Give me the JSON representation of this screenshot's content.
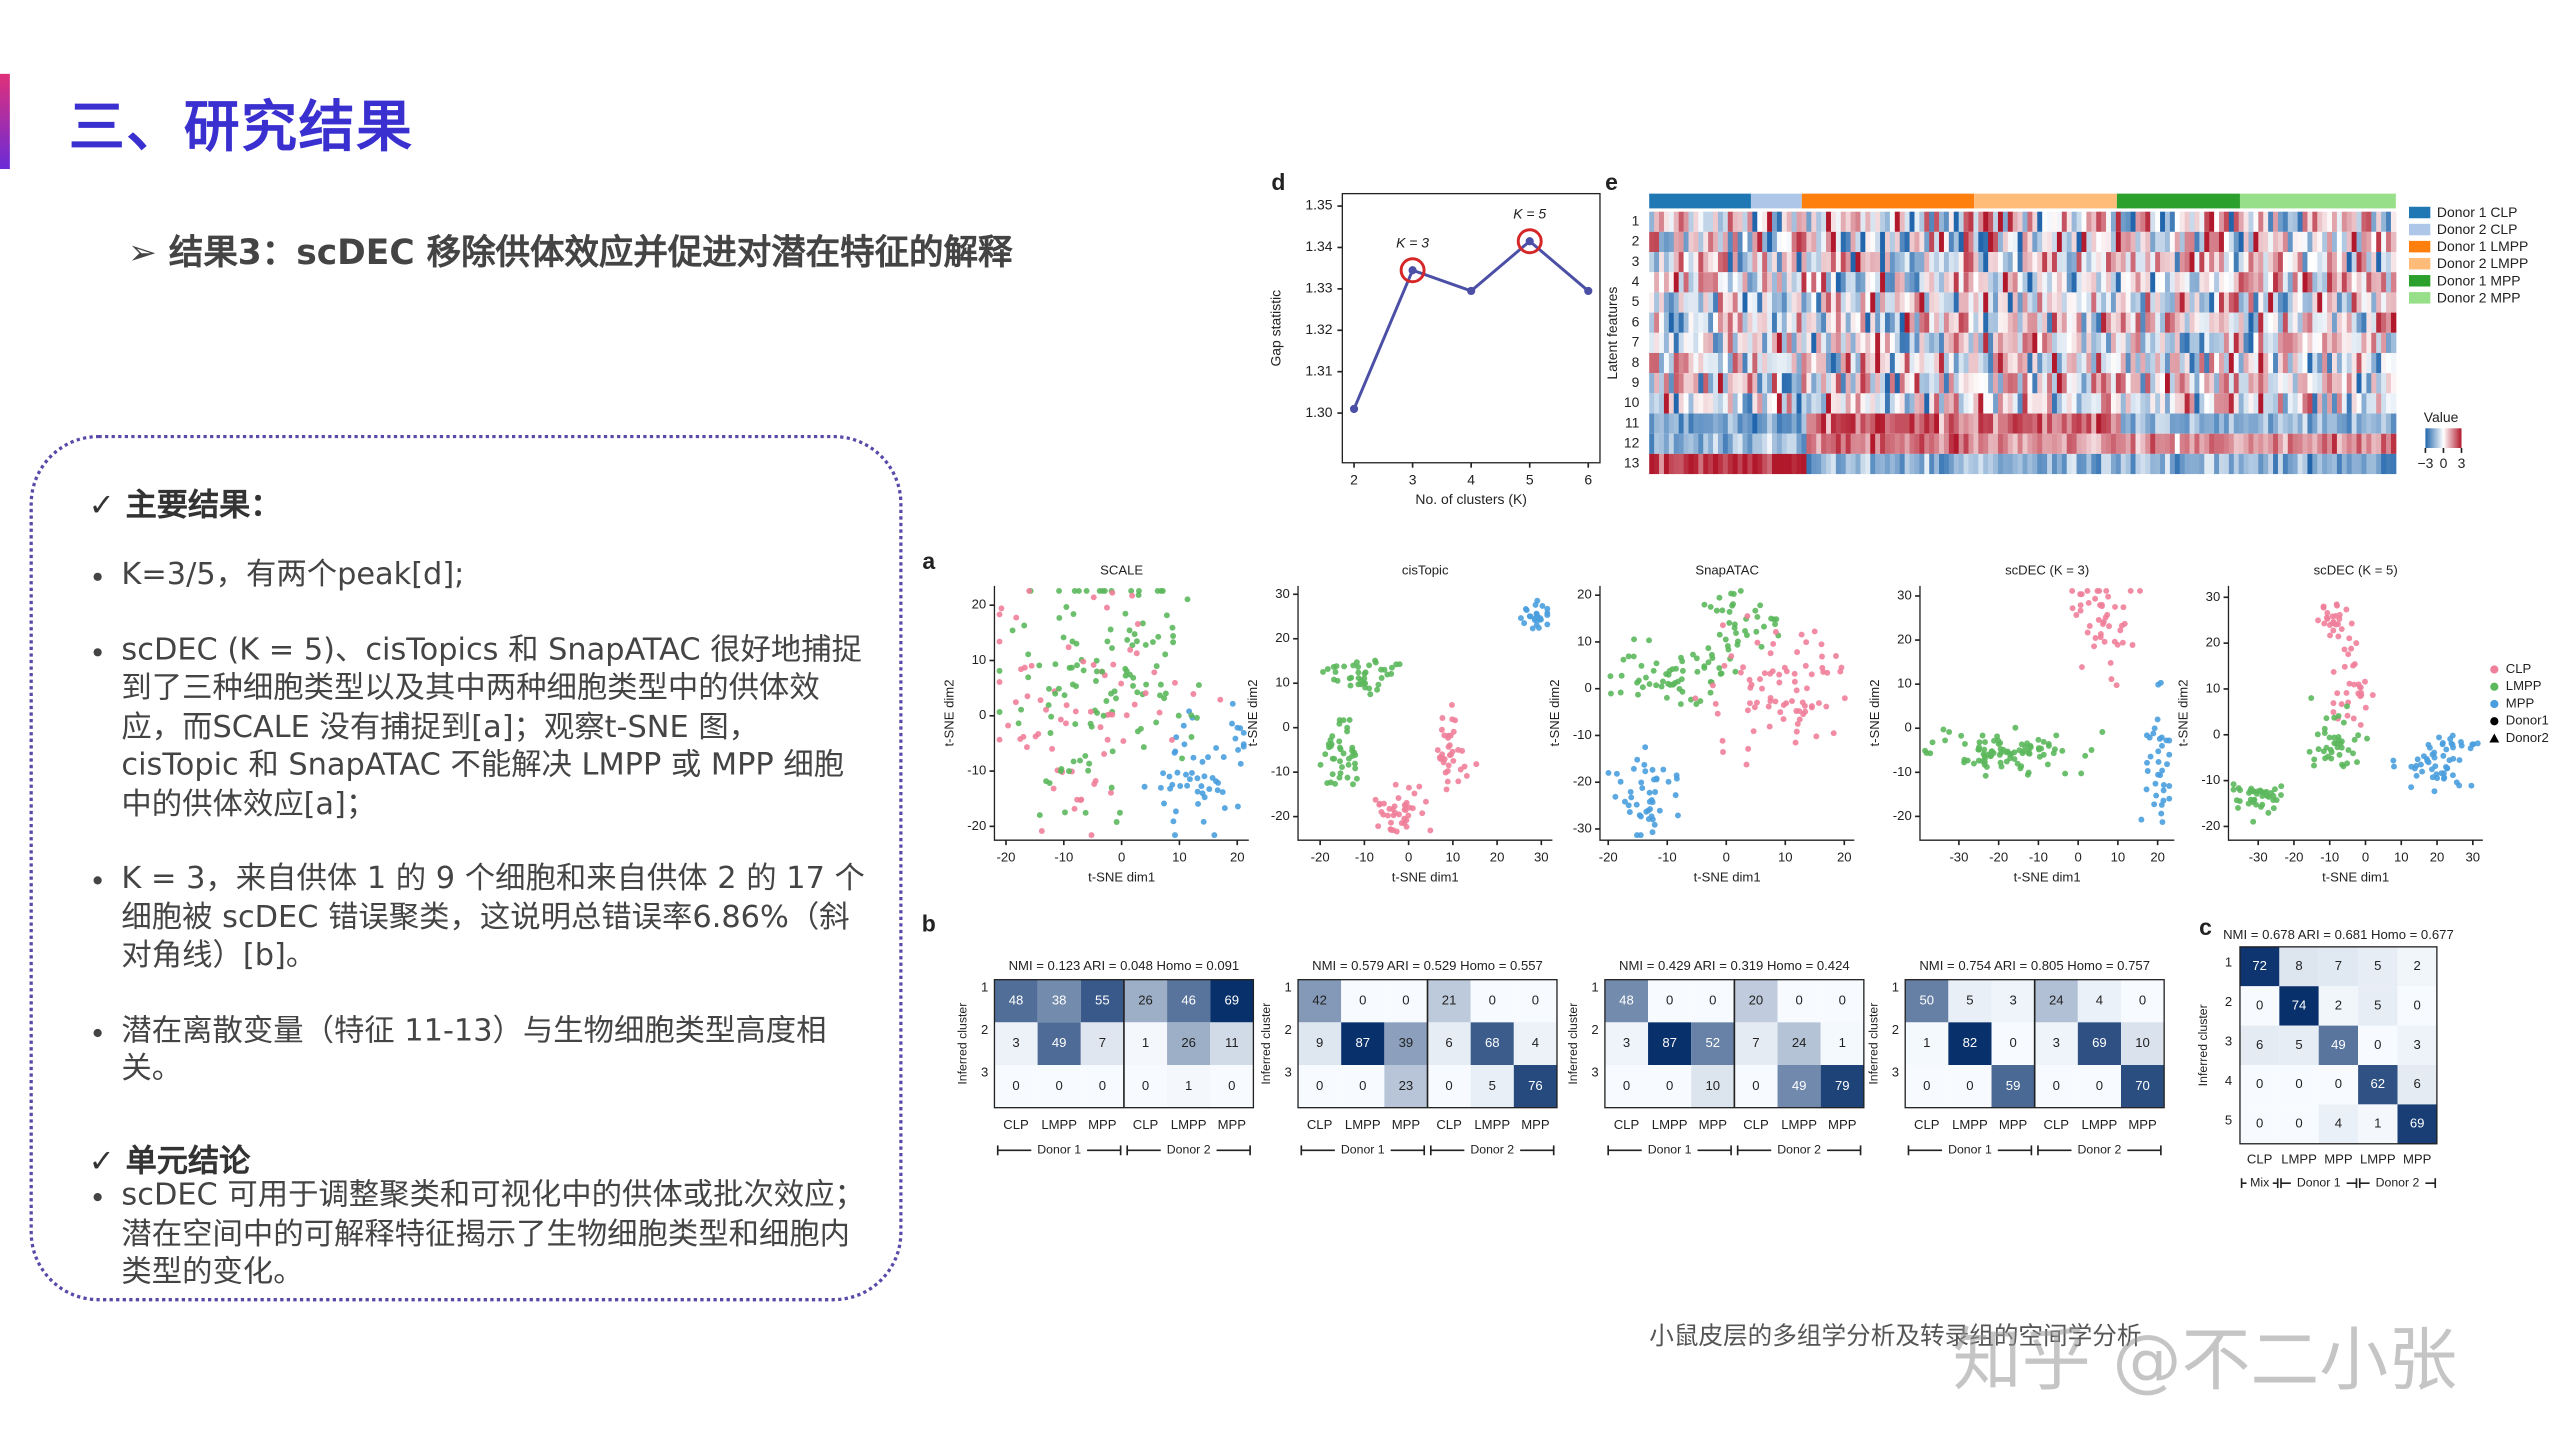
{
  "header": {
    "title": "三、研究结果",
    "subtitle": "➢ 结果3：scDEC 移除供体效应并促进对潜在特征的解释"
  },
  "summary": {
    "heading": "✓ 主要结果：",
    "bullets": [
      "K=3/5，有两个peak[d];",
      "scDEC (K = 5)、cisTopics 和 SnapATAC 很好地捕捉到了三种细胞类型以及其中两种细胞类型中的供体效应，而SCALE 没有捕捉到[a]；观察t-SNE 图，cisTopic 和 SnapATAC 不能解决 LMPP 或 MPP 细胞中的供体效应[a]；",
      "K = 3，来自供体 1 的 9 个细胞和来自供体 2 的 17 个细胞被 scDEC 错误聚类，这说明总错误率6.86%（斜对角线）[b]。",
      "潜在离散变量（特征 11-13）与生物细胞类型高度相关。"
    ],
    "conclusion_heading": "✓ 单元结论",
    "conclusion_bullets": [
      "scDEC 可用于调整聚类和可视化中的供体或批次效应；潜在空间中的可解释特征揭示了生物细胞类型和细胞内类型的变化。"
    ]
  },
  "chart_data": {
    "type": "line",
    "panel_label": "d",
    "x_label": "No. of clusters (K)",
    "y_label": "Gap statistic",
    "x": [
      2,
      3,
      4,
      5,
      6
    ],
    "values": [
      1.301,
      1.3345,
      1.3295,
      1.3415,
      1.3295
    ],
    "color": "#4b4fa6",
    "annotations": [
      "K = 3",
      "K = 5"
    ],
    "highlight_color": "#d62728",
    "xlim": [
      1.8,
      6.2
    ],
    "ylim": [
      1.288,
      1.353
    ],
    "xticks": [
      2,
      3,
      4,
      5,
      6
    ],
    "yticks": [
      {
        "value": 1.3,
        "label": "1.30"
      },
      1.31,
      1.32,
      1.33,
      1.34,
      1.35
    ]
  },
  "figure": {
    "e": {
      "label": "e",
      "y_label": "Latent features",
      "rows": [
        "1",
        "2",
        "3",
        "4",
        "5",
        "6",
        "7",
        "8",
        "9",
        "10",
        "11",
        "12",
        "13"
      ],
      "groups": [
        {
          "name": "Donor 1 CLP",
          "color": "#1f77b4"
        },
        {
          "name": "Donor 2 CLP",
          "color": "#aec7e8"
        },
        {
          "name": "Donor 1 LMPP",
          "color": "#ff7f0e"
        },
        {
          "name": "Donor 2 LMPP",
          "color": "#ffbb78"
        },
        {
          "name": "Donor 1 MPP",
          "color": "#2ca02c"
        },
        {
          "name": "Donor 2 MPP",
          "color": "#98df8a"
        }
      ],
      "colorbar_title": "Value",
      "colorbar_ticks": [
        {
          "value": -3,
          "label": "−3"
        },
        0,
        3
      ]
    },
    "a": {
      "label": "a",
      "x_label": "t-SNE dim1",
      "y_label": "t-SNE dim2",
      "legend": [
        {
          "name": "CLP",
          "color": "#ef7f9a"
        },
        {
          "name": "LMPP",
          "color": "#5cb85c"
        },
        {
          "name": "MPP",
          "color": "#4a9ede"
        },
        {
          "name": "Donor1",
          "color": "#000000"
        },
        {
          "name": "Donor2",
          "color": "#000000"
        }
      ],
      "panels": [
        {
          "title": "SCALE",
          "xlim": [
            -22,
            22
          ],
          "ylim": [
            -22.5,
            23.5
          ],
          "xticks": [
            -20,
            -10,
            0,
            10,
            20
          ],
          "yticks": [
            -20,
            -10,
            0,
            10,
            20
          ]
        },
        {
          "title": "cisTopic",
          "xlim": [
            -25,
            32.5
          ],
          "ylim": [
            -25.3,
            31.9
          ],
          "xticks": [
            -20,
            -10,
            0,
            10,
            20,
            30
          ],
          "yticks": [
            -20,
            -10,
            0,
            10,
            20,
            30
          ]
        },
        {
          "title": "SnapATAC",
          "xlim": [
            -21.4,
            21.7
          ],
          "ylim": [
            -32.4,
            22
          ],
          "xticks": [
            -20,
            -10,
            0,
            10,
            20
          ],
          "yticks": [
            -30,
            -20,
            -10,
            0,
            10,
            20
          ]
        },
        {
          "title": "scDEC (K = 3)",
          "xlim": [
            -39.8,
            24.2
          ],
          "ylim": [
            -25.4,
            32.3
          ],
          "xticks": [
            -30,
            -20,
            -10,
            0,
            10,
            20
          ],
          "yticks": [
            -20,
            -10,
            0,
            10,
            20,
            30
          ]
        },
        {
          "title": "scDEC (K = 5)",
          "xlim": [
            -38.3,
            32.8
          ],
          "ylim": [
            -23,
            32.5
          ],
          "xticks": [
            -30,
            -20,
            -10,
            0,
            10,
            20,
            30
          ],
          "yticks": [
            -20,
            -10,
            0,
            10,
            20,
            30
          ]
        }
      ]
    },
    "b": {
      "label": "b",
      "y_label": "Inferred cluster",
      "rows": [
        "1",
        "2",
        "3"
      ],
      "columns": [
        "CLP",
        "LMPP",
        "MPP",
        "CLP",
        "LMPP",
        "MPP"
      ],
      "donors": [
        "Donor 1",
        "Donor 2"
      ],
      "matrices": [
        {
          "title": "NMI = 0.123 ARI = 0.048 Homo = 0.091",
          "values": [
            [
              48,
              38,
              55,
              26,
              46,
              69
            ],
            [
              3,
              49,
              7,
              1,
              26,
              11
            ],
            [
              0,
              0,
              0,
              0,
              1,
              0
            ]
          ]
        },
        {
          "title": "NMI = 0.579 ARI = 0.529 Homo = 0.557",
          "values": [
            [
              42,
              0,
              0,
              21,
              0,
              0
            ],
            [
              9,
              87,
              39,
              6,
              68,
              4
            ],
            [
              0,
              0,
              23,
              0,
              5,
              76
            ]
          ]
        },
        {
          "title": "NMI = 0.429 ARI = 0.319 Homo = 0.424",
          "values": [
            [
              48,
              0,
              0,
              20,
              0,
              0
            ],
            [
              3,
              87,
              52,
              7,
              24,
              1
            ],
            [
              0,
              0,
              10,
              0,
              49,
              79
            ]
          ]
        },
        {
          "title": "NMI = 0.754 ARI = 0.805 Homo = 0.757",
          "values": [
            [
              50,
              5,
              3,
              24,
              4,
              0
            ],
            [
              1,
              82,
              0,
              3,
              69,
              10
            ],
            [
              0,
              0,
              59,
              0,
              0,
              70
            ]
          ]
        }
      ]
    },
    "c": {
      "label": "c",
      "y_label": "Inferred cluster",
      "title": "NMI = 0.678 ARI = 0.681 Homo = 0.677",
      "rows": [
        "1",
        "2",
        "3",
        "4",
        "5"
      ],
      "columns": [
        "CLP",
        "LMPP",
        "MPP",
        "LMPP",
        "MPP"
      ],
      "groups": [
        "Mix",
        "Donor 1",
        "Donor 2"
      ],
      "values": [
        [
          72,
          8,
          7,
          5,
          2
        ],
        [
          0,
          74,
          2,
          5,
          0
        ],
        [
          6,
          5,
          49,
          0,
          3
        ],
        [
          0,
          0,
          0,
          62,
          6
        ],
        [
          0,
          0,
          4,
          1,
          69
        ]
      ]
    }
  },
  "footer": {
    "caption": "小鼠皮层的多组学分析及转录组的空间学分析",
    "watermark": "知乎 @不二小张"
  }
}
